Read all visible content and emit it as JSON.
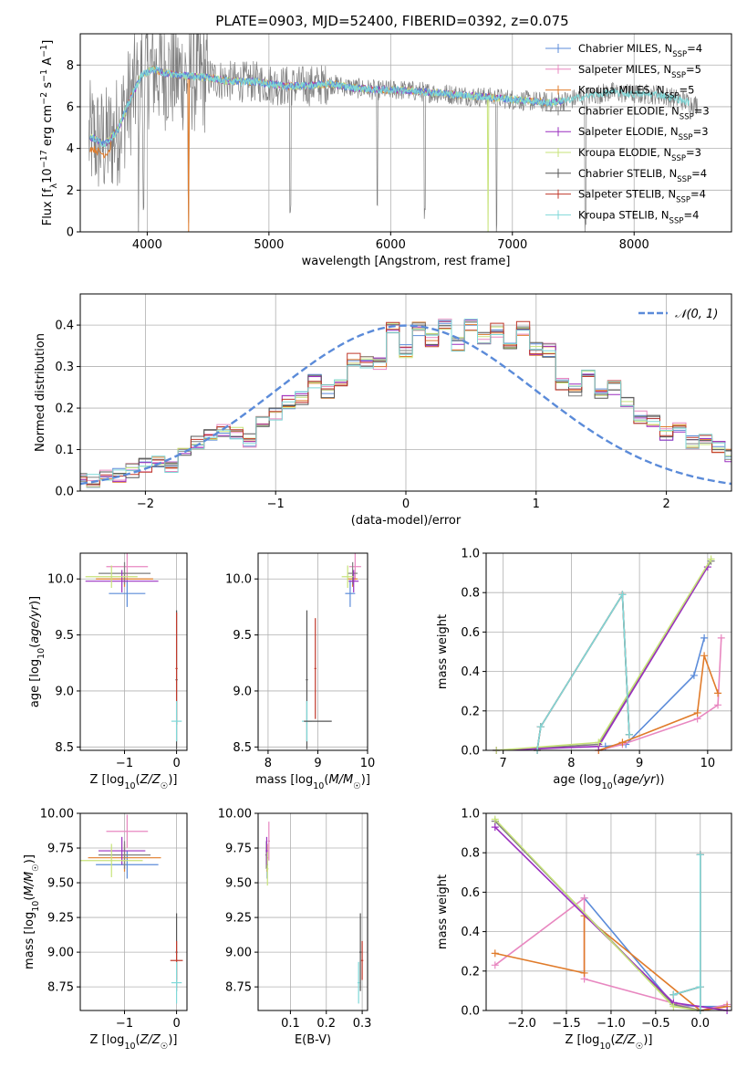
{
  "figure": {
    "title": "PLATE=0903, MJD=52400, FIBERID=0392, z=0.075"
  },
  "colors": {
    "data": "#7f7f7f",
    "chabrier_miles": "#5b8bd9",
    "salpeter_miles": "#e887c0",
    "kroupa_miles": "#e07b2a",
    "chabrier_elodie": "#7f7f7f",
    "salpeter_elodie": "#9a2fbf",
    "kroupa_elodie": "#c7e37a",
    "chabrier_stelib": "#555555",
    "salpeter_stelib": "#c0392b",
    "kroupa_stelib": "#7fd8d8",
    "normal": "#5b8bd9",
    "grid": "#b0b0b0"
  },
  "legend": [
    {
      "label": "Chabrier MILES, N",
      "sub": "SSP",
      "tail": "=4",
      "color_key": "chabrier_miles"
    },
    {
      "label": "Salpeter MILES, N",
      "sub": "SSP",
      "tail": "=5",
      "color_key": "salpeter_miles"
    },
    {
      "label": "Kroupa MILES, N",
      "sub": "SSP",
      "tail": "=5",
      "color_key": "kroupa_miles"
    },
    {
      "label": "Chabrier ELODIE, N",
      "sub": "SSP",
      "tail": "=3",
      "color_key": "chabrier_elodie"
    },
    {
      "label": "Salpeter ELODIE, N",
      "sub": "SSP",
      "tail": "=3",
      "color_key": "salpeter_elodie"
    },
    {
      "label": "Kroupa ELODIE, N",
      "sub": "SSP",
      "tail": "=3",
      "color_key": "kroupa_elodie"
    },
    {
      "label": "Chabrier STELIB, N",
      "sub": "SSP",
      "tail": "=4",
      "color_key": "chabrier_stelib"
    },
    {
      "label": "Salpeter STELIB, N",
      "sub": "SSP",
      "tail": "=4",
      "color_key": "salpeter_stelib"
    },
    {
      "label": "Kroupa STELIB, N",
      "sub": "SSP",
      "tail": "=4",
      "color_key": "kroupa_stelib"
    }
  ],
  "normal_legend": "𝒩(0, 1)",
  "chart_data": [
    {
      "id": "spectrum",
      "type": "line",
      "xlabel": "wavelength [Angstrom, rest frame]",
      "ylabel": "Flux [f_λ10^-17 erg cm^-2 s^-1 A^-1]",
      "xlim": [
        3450,
        8800
      ],
      "ylim": [
        0,
        9.5
      ],
      "xticks": [
        4000,
        5000,
        6000,
        7000,
        8000
      ],
      "yticks": [
        0,
        2,
        4,
        6,
        8
      ],
      "continuum": {
        "x": [
          3550,
          3650,
          3750,
          3850,
          3950,
          4050,
          4150,
          4300,
          4500,
          4700,
          4900,
          5100,
          5300,
          5500,
          5700,
          5900,
          6100,
          6300,
          6500,
          6700,
          6900,
          7100,
          7300,
          7450,
          7600,
          7800,
          8000,
          8200,
          8400,
          8500
        ],
        "y": [
          4.5,
          4.2,
          4.8,
          6.2,
          7.5,
          7.8,
          7.6,
          7.5,
          7.4,
          7.2,
          7.2,
          7.0,
          7.0,
          7.1,
          6.9,
          6.8,
          6.8,
          6.7,
          6.6,
          6.5,
          6.4,
          6.3,
          6.2,
          6.3,
          6.5,
          6.7,
          6.6,
          6.6,
          6.3,
          6.1
        ]
      },
      "absorption_lines": [
        3930,
        3968,
        4340,
        5175,
        5890,
        6280,
        6870,
        7600
      ]
    },
    {
      "id": "residuals",
      "type": "line",
      "xlabel": "(data-model)/error",
      "ylabel": "Normed distribution",
      "xlim": [
        -2.5,
        2.5
      ],
      "ylim": [
        0,
        0.475
      ],
      "xticks": [
        -2,
        -1,
        0,
        1,
        2
      ],
      "yticks": [
        0.0,
        0.1,
        0.2,
        0.3,
        0.4
      ],
      "bin_width": 0.1,
      "histogram_base": [
        0.028,
        0.024,
        0.033,
        0.039,
        0.049,
        0.062,
        0.074,
        0.061,
        0.102,
        0.115,
        0.133,
        0.147,
        0.136,
        0.123,
        0.169,
        0.188,
        0.214,
        0.226,
        0.266,
        0.24,
        0.266,
        0.318,
        0.31,
        0.305,
        0.392,
        0.338,
        0.39,
        0.364,
        0.4,
        0.354,
        0.4,
        0.372,
        0.388,
        0.35,
        0.392,
        0.343,
        0.34,
        0.26,
        0.246,
        0.276,
        0.232,
        0.25,
        0.212,
        0.18,
        0.165,
        0.139,
        0.148,
        0.118,
        0.128,
        0.104,
        0.088,
        0.068,
        0.061,
        0.057,
        0.072,
        0.081,
        0.055,
        0.048,
        0.037,
        0.031,
        0.022
      ]
    },
    {
      "id": "age-vs-z",
      "type": "scatter",
      "xlabel": "Z [log10(Z/Z☉)]",
      "ylabel": "age [log10(age/yr)]",
      "xlim": [
        -1.85,
        0.2
      ],
      "ylim": [
        8.47,
        10.23
      ],
      "xticks": [
        -1,
        0
      ],
      "yticks": [
        8.5,
        9.0,
        9.5,
        10.0
      ],
      "points": [
        {
          "c": "chabrier_miles",
          "x": -0.95,
          "y": 9.87,
          "ex": 0.35,
          "ey": 0.12
        },
        {
          "c": "salpeter_miles",
          "x": -0.95,
          "y": 10.11,
          "ex": 0.4,
          "ey": 0.12
        },
        {
          "c": "kroupa_miles",
          "x": -1.0,
          "y": 10.0,
          "ex": 0.55,
          "ey": 0.07
        },
        {
          "c": "chabrier_elodie",
          "x": -1.0,
          "y": 10.05,
          "ex": 0.5,
          "ey": 0.1
        },
        {
          "c": "salpeter_elodie",
          "x": -1.05,
          "y": 9.98,
          "ex": 0.7,
          "ey": 0.1
        },
        {
          "c": "kroupa_elodie",
          "x": -1.25,
          "y": 10.02,
          "ex": 0.5,
          "ey": 0.1
        },
        {
          "c": "chabrier_stelib",
          "x": 0.0,
          "y": 9.1,
          "ex": 0.02,
          "ey": 0.62
        },
        {
          "c": "salpeter_stelib",
          "x": 0.0,
          "y": 9.2,
          "ex": 0.02,
          "ey": 0.5
        },
        {
          "c": "kroupa_stelib",
          "x": 0.0,
          "y": 8.73,
          "ex": 0.1,
          "ey": 0.18
        }
      ]
    },
    {
      "id": "age-vs-mass",
      "type": "scatter",
      "xlabel": "mass [log10(M/M☉)]",
      "ylabel": "",
      "xlim": [
        7.8,
        10.0
      ],
      "ylim": [
        8.47,
        10.23
      ],
      "xticks": [
        8,
        9,
        10
      ],
      "yticks": [
        8.5,
        9.0,
        9.5,
        10.0
      ],
      "points": [
        {
          "c": "chabrier_miles",
          "x": 9.65,
          "y": 9.87,
          "ex": 0.1,
          "ey": 0.12
        },
        {
          "c": "salpeter_miles",
          "x": 9.75,
          "y": 10.11,
          "ex": 0.12,
          "ey": 0.12
        },
        {
          "c": "kroupa_miles",
          "x": 9.7,
          "y": 10.0,
          "ex": 0.1,
          "ey": 0.07
        },
        {
          "c": "chabrier_elodie",
          "x": 9.7,
          "y": 10.05,
          "ex": 0.1,
          "ey": 0.1
        },
        {
          "c": "salpeter_elodie",
          "x": 9.72,
          "y": 9.98,
          "ex": 0.1,
          "ey": 0.1
        },
        {
          "c": "kroupa_elodie",
          "x": 9.6,
          "y": 10.02,
          "ex": 0.12,
          "ey": 0.1
        },
        {
          "c": "chabrier_stelib",
          "x": 8.78,
          "y": 9.1,
          "ex": 0.02,
          "ey": 0.62
        },
        {
          "c": "salpeter_stelib",
          "x": 8.95,
          "y": 9.2,
          "ex": 0.02,
          "ey": 0.45
        },
        {
          "c": "kroupa_stelib",
          "x": 8.78,
          "y": 8.73,
          "ex": 0.1,
          "ey": 0.18
        },
        {
          "c": "chabrier_stelib",
          "x": 9.0,
          "y": 8.73,
          "ex": 0.28,
          "ey": 0.0
        }
      ]
    },
    {
      "id": "weight-vs-age",
      "type": "line",
      "xlabel": "age (log10(age/yr))",
      "ylabel": "mass weight",
      "xlim": [
        6.75,
        10.35
      ],
      "ylim": [
        0,
        1.0
      ],
      "xticks": [
        7,
        8,
        9,
        10
      ],
      "yticks": [
        0.0,
        0.2,
        0.4,
        0.6,
        0.8,
        1.0
      ],
      "series": [
        {
          "c": "chabrier_miles",
          "x": [
            8.5,
            8.8,
            9.8,
            9.95
          ],
          "y": [
            0.02,
            0.03,
            0.38,
            0.57
          ]
        },
        {
          "c": "salpeter_miles",
          "x": [
            8.4,
            8.75,
            9.85,
            10.15,
            10.2
          ],
          "y": [
            0.0,
            0.03,
            0.16,
            0.23,
            0.57
          ]
        },
        {
          "c": "kroupa_miles",
          "x": [
            8.4,
            8.75,
            9.85,
            9.95,
            10.15
          ],
          "y": [
            0.0,
            0.04,
            0.19,
            0.48,
            0.29
          ]
        },
        {
          "c": "chabrier_elodie",
          "x": [
            6.9,
            8.4,
            10.05
          ],
          "y": [
            0.0,
            0.03,
            0.96
          ]
        },
        {
          "c": "salpeter_elodie",
          "x": [
            6.9,
            8.4,
            10.0
          ],
          "y": [
            0.0,
            0.02,
            0.93
          ]
        },
        {
          "c": "kroupa_elodie",
          "x": [
            6.9,
            8.4,
            10.05
          ],
          "y": [
            0.0,
            0.04,
            0.97
          ]
        },
        {
          "c": "chabrier_stelib",
          "x": [
            7.5,
            7.55,
            8.75,
            8.85
          ],
          "y": [
            0.0,
            0.12,
            0.79,
            0.08
          ]
        },
        {
          "c": "salpeter_stelib",
          "x": [
            7.5,
            7.55,
            8.75,
            8.85
          ],
          "y": [
            0.0,
            0.12,
            0.79,
            0.08
          ]
        },
        {
          "c": "kroupa_stelib",
          "x": [
            7.5,
            7.55,
            8.75,
            8.85
          ],
          "y": [
            0.0,
            0.12,
            0.79,
            0.08
          ]
        }
      ]
    },
    {
      "id": "mass-vs-z",
      "type": "scatter",
      "xlabel": "Z [log10(Z/Z☉)]",
      "ylabel": "mass [log10(M/M☉)]",
      "xlim": [
        -1.85,
        0.2
      ],
      "ylim": [
        8.58,
        10.0
      ],
      "xticks": [
        -1,
        0
      ],
      "yticks": [
        8.75,
        9.0,
        9.25,
        9.5,
        9.75,
        10.0
      ],
      "points": [
        {
          "c": "chabrier_miles",
          "x": -0.95,
          "y": 9.63,
          "ex": 0.6,
          "ey": 0.1
        },
        {
          "c": "salpeter_miles",
          "x": -0.95,
          "y": 9.87,
          "ex": 0.4,
          "ey": 0.12
        },
        {
          "c": "kroupa_miles",
          "x": -1.0,
          "y": 9.68,
          "ex": 0.7,
          "ey": 0.1
        },
        {
          "c": "chabrier_elodie",
          "x": -1.0,
          "y": 9.7,
          "ex": 0.5,
          "ey": 0.1
        },
        {
          "c": "salpeter_elodie",
          "x": -1.05,
          "y": 9.73,
          "ex": 0.45,
          "ey": 0.1
        },
        {
          "c": "kroupa_elodie",
          "x": -1.25,
          "y": 9.66,
          "ex": 0.6,
          "ey": 0.12
        },
        {
          "c": "chabrier_stelib",
          "x": 0.0,
          "y": 9.0,
          "ex": 0.02,
          "ey": 0.28
        },
        {
          "c": "salpeter_stelib",
          "x": 0.0,
          "y": 8.94,
          "ex": 0.12,
          "ey": 0.14
        },
        {
          "c": "kroupa_stelib",
          "x": 0.0,
          "y": 8.78,
          "ex": 0.1,
          "ey": 0.15
        }
      ]
    },
    {
      "id": "mass-vs-ebv",
      "type": "scatter",
      "xlabel": "E(B-V)",
      "ylabel": "",
      "xlim": [
        0.01,
        0.315
      ],
      "ylim": [
        8.58,
        10.0
      ],
      "xticks": [
        0.1,
        0.2,
        0.3
      ],
      "yticks": [
        8.75,
        9.0,
        9.25,
        9.5,
        9.75,
        10.0
      ],
      "points": [
        {
          "c": "chabrier_miles",
          "x": 0.035,
          "y": 9.63,
          "ex": 0.003,
          "ey": 0.1
        },
        {
          "c": "salpeter_miles",
          "x": 0.04,
          "y": 9.8,
          "ex": 0.003,
          "ey": 0.14
        },
        {
          "c": "kroupa_miles",
          "x": 0.035,
          "y": 9.68,
          "ex": 0.003,
          "ey": 0.1
        },
        {
          "c": "chabrier_elodie",
          "x": 0.033,
          "y": 9.7,
          "ex": 0.003,
          "ey": 0.1
        },
        {
          "c": "salpeter_elodie",
          "x": 0.034,
          "y": 9.73,
          "ex": 0.003,
          "ey": 0.1
        },
        {
          "c": "kroupa_elodie",
          "x": 0.036,
          "y": 9.6,
          "ex": 0.003,
          "ey": 0.12
        },
        {
          "c": "chabrier_stelib",
          "x": 0.295,
          "y": 9.0,
          "ex": 0.003,
          "ey": 0.28
        },
        {
          "c": "salpeter_stelib",
          "x": 0.3,
          "y": 8.94,
          "ex": 0.003,
          "ey": 0.14
        },
        {
          "c": "kroupa_stelib",
          "x": 0.29,
          "y": 8.78,
          "ex": 0.003,
          "ey": 0.15
        }
      ]
    },
    {
      "id": "weight-vs-z",
      "type": "line",
      "xlabel": "Z [log10(Z/Z☉)]",
      "ylabel": "mass weight",
      "xlim": [
        -2.4,
        0.35
      ],
      "ylim": [
        0,
        1.0
      ],
      "xticks": [
        -2.0,
        -1.5,
        -1.0,
        -0.5,
        0.0
      ],
      "yticks": [
        0.0,
        0.2,
        0.4,
        0.6,
        0.8,
        1.0
      ],
      "series": [
        {
          "c": "chabrier_miles",
          "x": [
            -1.3,
            -0.3,
            0.0,
            0.3
          ],
          "y": [
            0.57,
            0.03,
            0.02,
            0.02
          ]
        },
        {
          "c": "salpeter_miles",
          "x": [
            -2.3,
            -1.3,
            -1.3,
            0.0,
            0.3
          ],
          "y": [
            0.23,
            0.57,
            0.16,
            0.0,
            0.03
          ]
        },
        {
          "c": "kroupa_miles",
          "x": [
            -2.3,
            -1.3,
            -1.3,
            0.0,
            0.3
          ],
          "y": [
            0.29,
            0.19,
            0.48,
            0.0,
            0.02
          ]
        },
        {
          "c": "chabrier_elodie",
          "x": [
            -2.3,
            -0.3,
            0.0
          ],
          "y": [
            0.96,
            0.03,
            0.0
          ]
        },
        {
          "c": "salpeter_elodie",
          "x": [
            -2.3,
            -0.3,
            0.0,
            0.3
          ],
          "y": [
            0.93,
            0.04,
            0.02,
            0.0
          ]
        },
        {
          "c": "kroupa_elodie",
          "x": [
            -2.3,
            -0.3,
            0.0
          ],
          "y": [
            0.97,
            0.02,
            0.0
          ]
        },
        {
          "c": "chabrier_stelib",
          "x": [
            -0.3,
            0.0,
            0.0,
            0.0
          ],
          "y": [
            0.08,
            0.12,
            0.79,
            0.0
          ]
        },
        {
          "c": "salpeter_stelib",
          "x": [
            -0.3,
            0.0,
            0.0,
            0.0
          ],
          "y": [
            0.08,
            0.12,
            0.79,
            0.0
          ]
        },
        {
          "c": "kroupa_stelib",
          "x": [
            -0.3,
            0.0,
            0.0,
            0.0
          ],
          "y": [
            0.08,
            0.12,
            0.79,
            0.0
          ]
        }
      ]
    }
  ]
}
